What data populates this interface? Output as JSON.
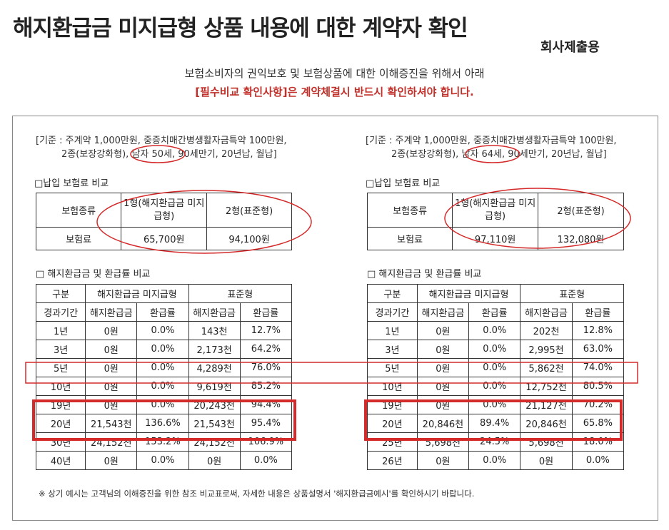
{
  "title": "해지환급금 미지급형 상품 내용에 대한 계약자 확인",
  "subtag": "회사제출용",
  "intro_line1": "보험소비자의 권익보호 및 보험상품에 대한 이해증진을 위해서 아래",
  "intro_line2": "[필수비교 확인사항]은 계약체결시 반드시 확인하셔야 합니다.",
  "left": {
    "basis_line1": "[기준 : 주계약 1,000만원, 중증치매간병생활자금특약 100만원,",
    "basis_line2": "2종(보장강화형), 남자 50세, 90세만기, 20년납, 월납]",
    "premium_heading": "□납입 보험료 비교",
    "premium_type_label": "보험종류",
    "premium_col1": "1형(해지환급금 미지급형)",
    "premium_col2": "2형(표준형)",
    "premium_row_label": "보험료",
    "premium_val1": "65,700원",
    "premium_val2": "94,100원",
    "refund_heading": "□ 해지환급금 및 환급률 비교",
    "h_gubun": "구분",
    "h_type1": "해지환급금 미지급형",
    "h_type2": "표준형",
    "h_period": "경과기간",
    "h_amount1": "해지환급금",
    "h_rate1": "환급률",
    "h_amount2": "해지환급금",
    "h_rate2": "환급률",
    "rows": [
      [
        "1년",
        "0원",
        "0.0%",
        "143천",
        "12.7%"
      ],
      [
        "3년",
        "0원",
        "0.0%",
        "2,173천",
        "64.2%"
      ],
      [
        "5년",
        "0원",
        "0.0%",
        "4,289천",
        "76.0%"
      ],
      [
        "10년",
        "0원",
        "0.0%",
        "9,619천",
        "85.2%"
      ],
      [
        "19년",
        "0원",
        "0.0%",
        "20,243천",
        "94.4%"
      ],
      [
        "20년",
        "21,543천",
        "136.6%",
        "21,543천",
        "95.4%"
      ],
      [
        "30년",
        "24,152천",
        "153.2%",
        "24,152천",
        "106.9%"
      ],
      [
        "40년",
        "0원",
        "0.0%",
        "0원",
        "0.0%"
      ]
    ]
  },
  "right": {
    "basis_line1": "[기준 : 주계약 1,000만원, 중증치매간병생활자금특약 100만원,",
    "basis_line2": "2종(보장강화형), 남자 64세, 90세만기, 20년납, 월납]",
    "premium_heading": "□납입 보험료 비교",
    "premium_type_label": "보험종류",
    "premium_col1": "1형(해지환급금 미지급형)",
    "premium_col2": "2형(표준형)",
    "premium_row_label": "보험료",
    "premium_val1": "97,110원",
    "premium_val2": "132,080원",
    "refund_heading": "□ 해지환급금 및 환급률 비교",
    "h_gubun": "구분",
    "h_type1": "해지환급금 미지급형",
    "h_type2": "표준형",
    "h_period": "경과기간",
    "h_amount1": "해지환급금",
    "h_rate1": "환급률",
    "h_amount2": "해지환급금",
    "h_rate2": "환급률",
    "rows": [
      [
        "1년",
        "0원",
        "0.0%",
        "202천",
        "12.8%"
      ],
      [
        "3년",
        "0원",
        "0.0%",
        "2,995천",
        "63.0%"
      ],
      [
        "5년",
        "0원",
        "0.0%",
        "5,862천",
        "74.0%"
      ],
      [
        "10년",
        "0원",
        "0.0%",
        "12,752천",
        "80.5%"
      ],
      [
        "19년",
        "0원",
        "0.0%",
        "21,127천",
        "70.2%"
      ],
      [
        "20년",
        "20,846천",
        "89.4%",
        "20,846천",
        "65.8%"
      ],
      [
        "25년",
        "5,698천",
        "24.5%",
        "5,698천",
        "18.0%"
      ],
      [
        "26년",
        "0원",
        "0.0%",
        "0원",
        "0.0%"
      ]
    ]
  },
  "footnote": "※ 상기 예시는 고객님의 이해증진을 위한 참조 비교표로써, 자세한 내용은 상품설명서 '해지환급금예시'를 확인하시기 바랍니다.",
  "colors": {
    "accent_red": "#c0312b",
    "annotation_red": "#d42a2a"
  }
}
